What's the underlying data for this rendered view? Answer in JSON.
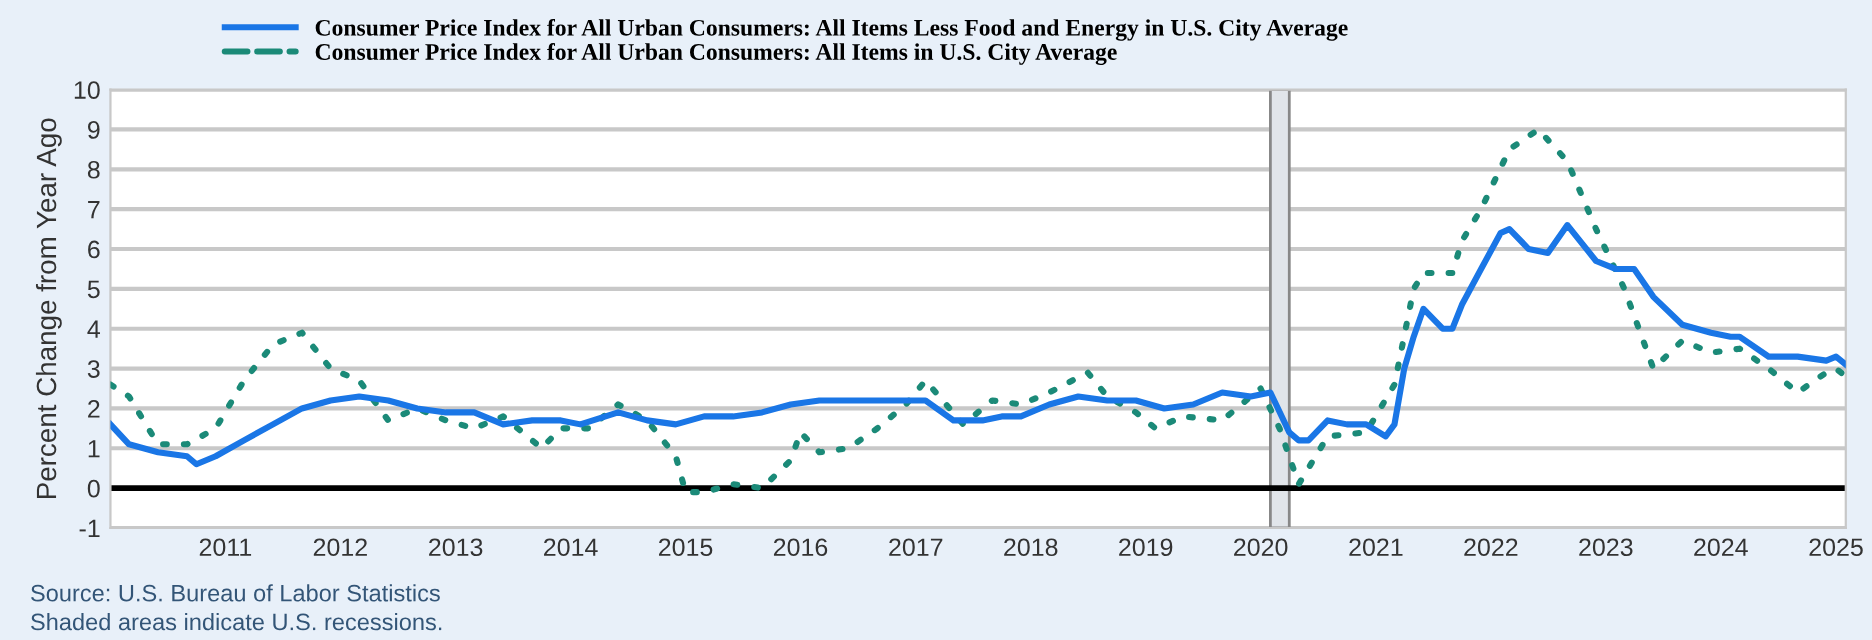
{
  "chart_data": {
    "type": "line",
    "ylabel": "Percent Change from Year Ago",
    "legend": "top left",
    "grid": "y",
    "marker": "none",
    "ylim": [
      -1,
      10
    ],
    "yticks": [
      -1,
      0,
      1,
      2,
      3,
      4,
      5,
      6,
      7,
      8,
      9,
      10
    ],
    "xlim": [
      "2010-01-01",
      "2025-02-01"
    ],
    "xticks": [
      {
        "value": "2011-01-01",
        "label": "2011"
      },
      {
        "value": "2012-01-01",
        "label": "2012"
      },
      {
        "value": "2013-01-01",
        "label": "2013"
      },
      {
        "value": "2014-01-01",
        "label": "2014"
      },
      {
        "value": "2015-01-01",
        "label": "2015"
      },
      {
        "value": "2016-01-01",
        "label": "2016"
      },
      {
        "value": "2017-01-01",
        "label": "2017"
      },
      {
        "value": "2018-01-01",
        "label": "2018"
      },
      {
        "value": "2019-01-01",
        "label": "2019"
      },
      {
        "value": "2020-01-01",
        "label": "2020"
      },
      {
        "value": "2021-01-01",
        "label": "2021"
      },
      {
        "value": "2022-01-01",
        "label": "2022"
      },
      {
        "value": "2023-01-01",
        "label": "2023"
      },
      {
        "value": "2024-01-01",
        "label": "2024"
      },
      {
        "value": "2025-01-01",
        "label": "2025"
      }
    ],
    "ref_lines": [
      {
        "axis": "y",
        "value": 0,
        "color": "#000000"
      }
    ],
    "bands": [
      {
        "axis": "x",
        "from": "2020-02-01",
        "to": "2020-04-01",
        "color": "#e1e5ea"
      }
    ],
    "series": [
      {
        "name": "Consumer Price Index for All Urban Consumers: All Items Less Food and Energy in U.S. City Average",
        "color": "#1a76e6",
        "line_style": "solid",
        "x": [
          "2010-01",
          "2010-03",
          "2010-06",
          "2010-09",
          "2010-10",
          "2010-12",
          "2011-03",
          "2011-06",
          "2011-09",
          "2011-12",
          "2012-03",
          "2012-06",
          "2012-09",
          "2012-12",
          "2013-03",
          "2013-06",
          "2013-09",
          "2013-12",
          "2014-02",
          "2014-06",
          "2014-09",
          "2014-12",
          "2015-03",
          "2015-06",
          "2015-09",
          "2015-12",
          "2016-03",
          "2016-06",
          "2016-09",
          "2016-12",
          "2017-02",
          "2017-05",
          "2017-08",
          "2017-10",
          "2017-12",
          "2018-03",
          "2018-06",
          "2018-09",
          "2018-12",
          "2019-03",
          "2019-06",
          "2019-09",
          "2019-12",
          "2020-02",
          "2020-04",
          "2020-05",
          "2020-06",
          "2020-08",
          "2020-10",
          "2020-12",
          "2021-02",
          "2021-03",
          "2021-04",
          "2021-05",
          "2021-06",
          "2021-08",
          "2021-09",
          "2021-10",
          "2021-12",
          "2022-02",
          "2022-03",
          "2022-05",
          "2022-07",
          "2022-09",
          "2022-12",
          "2023-02",
          "2023-04",
          "2023-06",
          "2023-09",
          "2023-12",
          "2024-02",
          "2024-03",
          "2024-06",
          "2024-09",
          "2024-12",
          "2025-01",
          "2025-02"
        ],
        "values": [
          1.6,
          1.1,
          0.9,
          0.8,
          0.6,
          0.8,
          1.2,
          1.6,
          2.0,
          2.2,
          2.3,
          2.2,
          2.0,
          1.9,
          1.9,
          1.6,
          1.7,
          1.7,
          1.6,
          1.9,
          1.7,
          1.6,
          1.8,
          1.8,
          1.9,
          2.1,
          2.2,
          2.2,
          2.2,
          2.2,
          2.2,
          1.7,
          1.7,
          1.8,
          1.8,
          2.1,
          2.3,
          2.2,
          2.2,
          2.0,
          2.1,
          2.4,
          2.3,
          2.4,
          1.4,
          1.2,
          1.2,
          1.7,
          1.6,
          1.6,
          1.3,
          1.6,
          3.0,
          3.8,
          4.5,
          4.0,
          4.0,
          4.6,
          5.5,
          6.4,
          6.5,
          6.0,
          5.9,
          6.6,
          5.7,
          5.5,
          5.5,
          4.8,
          4.1,
          3.9,
          3.8,
          3.8,
          3.3,
          3.3,
          3.2,
          3.3,
          3.1
        ]
      },
      {
        "name": "Consumer Price Index for All Urban Consumers: All Items in U.S. City Average",
        "color": "#1b8a78",
        "line_style": "dotted",
        "x": [
          "2010-01",
          "2010-03",
          "2010-06",
          "2010-09",
          "2010-12",
          "2011-03",
          "2011-06",
          "2011-09",
          "2011-12",
          "2012-03",
          "2012-06",
          "2012-09",
          "2012-12",
          "2013-03",
          "2013-06",
          "2013-09",
          "2013-10",
          "2013-12",
          "2014-03",
          "2014-06",
          "2014-09",
          "2014-12",
          "2015-01",
          "2015-03",
          "2015-06",
          "2015-09",
          "2015-12",
          "2016-01",
          "2016-03",
          "2016-06",
          "2016-09",
          "2016-12",
          "2017-02",
          "2017-06",
          "2017-09",
          "2017-12",
          "2018-03",
          "2018-07",
          "2018-09",
          "2018-12",
          "2019-02",
          "2019-05",
          "2019-09",
          "2019-12",
          "2020-01",
          "2020-03",
          "2020-05",
          "2020-08",
          "2020-12",
          "2021-03",
          "2021-05",
          "2021-06",
          "2021-09",
          "2021-10",
          "2021-12",
          "2022-03",
          "2022-06",
          "2022-09",
          "2022-12",
          "2023-03",
          "2023-06",
          "2023-09",
          "2023-12",
          "2024-03",
          "2024-06",
          "2024-09",
          "2024-12",
          "2025-01",
          "2025-02"
        ],
        "values": [
          2.6,
          2.3,
          1.1,
          1.1,
          1.5,
          2.7,
          3.6,
          3.9,
          3.0,
          2.7,
          1.7,
          2.0,
          1.7,
          1.5,
          1.8,
          1.2,
          1.0,
          1.5,
          1.5,
          2.1,
          1.7,
          0.8,
          -0.1,
          -0.1,
          0.1,
          0.0,
          0.7,
          1.4,
          0.9,
          1.0,
          1.5,
          2.1,
          2.7,
          1.6,
          2.2,
          2.1,
          2.4,
          2.9,
          2.3,
          1.9,
          1.5,
          1.8,
          1.7,
          2.3,
          2.5,
          1.5,
          0.1,
          1.3,
          1.4,
          2.6,
          5.0,
          5.4,
          5.4,
          6.2,
          7.0,
          8.5,
          9.0,
          8.2,
          6.5,
          5.0,
          3.0,
          3.7,
          3.4,
          3.5,
          3.0,
          2.4,
          2.9,
          3.0,
          2.8
        ]
      }
    ],
    "annotations": [
      "Source: U.S. Bureau of Labor Statistics",
      "Shaded areas indicate U.S. recessions."
    ]
  }
}
